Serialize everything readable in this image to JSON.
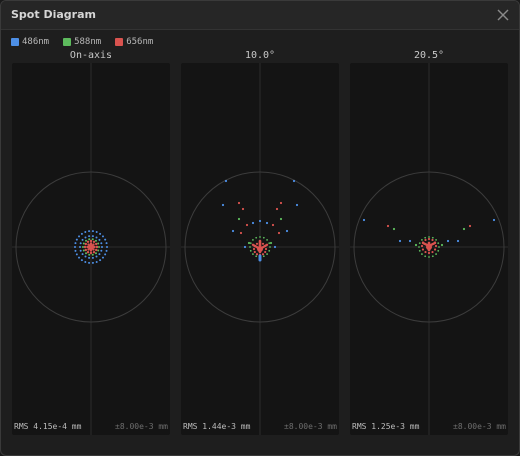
{
  "window": {
    "title": "Spot Diagram"
  },
  "legend": [
    {
      "label": "486nm",
      "color": "#4d8fe6"
    },
    {
      "label": "588nm",
      "color": "#5dbb5d"
    },
    {
      "label": "656nm",
      "color": "#d9534f"
    }
  ],
  "panels": [
    {
      "title": "On-axis",
      "rms": "RMS 4.15e-4 mm",
      "scale": "±8.00e-3 mm"
    },
    {
      "title": "10.0°",
      "rms": "RMS 1.44e-3 mm",
      "scale": "±8.00e-3 mm"
    },
    {
      "title": "20.5°",
      "rms": "RMS 1.25e-3 mm",
      "scale": "±8.00e-3 mm"
    }
  ],
  "colors": {
    "blue": "#4d8fe6",
    "green": "#5dbb5d",
    "red": "#d9534f",
    "circle": "#3c3c3c",
    "crosshair": "#2b2b2b"
  }
}
